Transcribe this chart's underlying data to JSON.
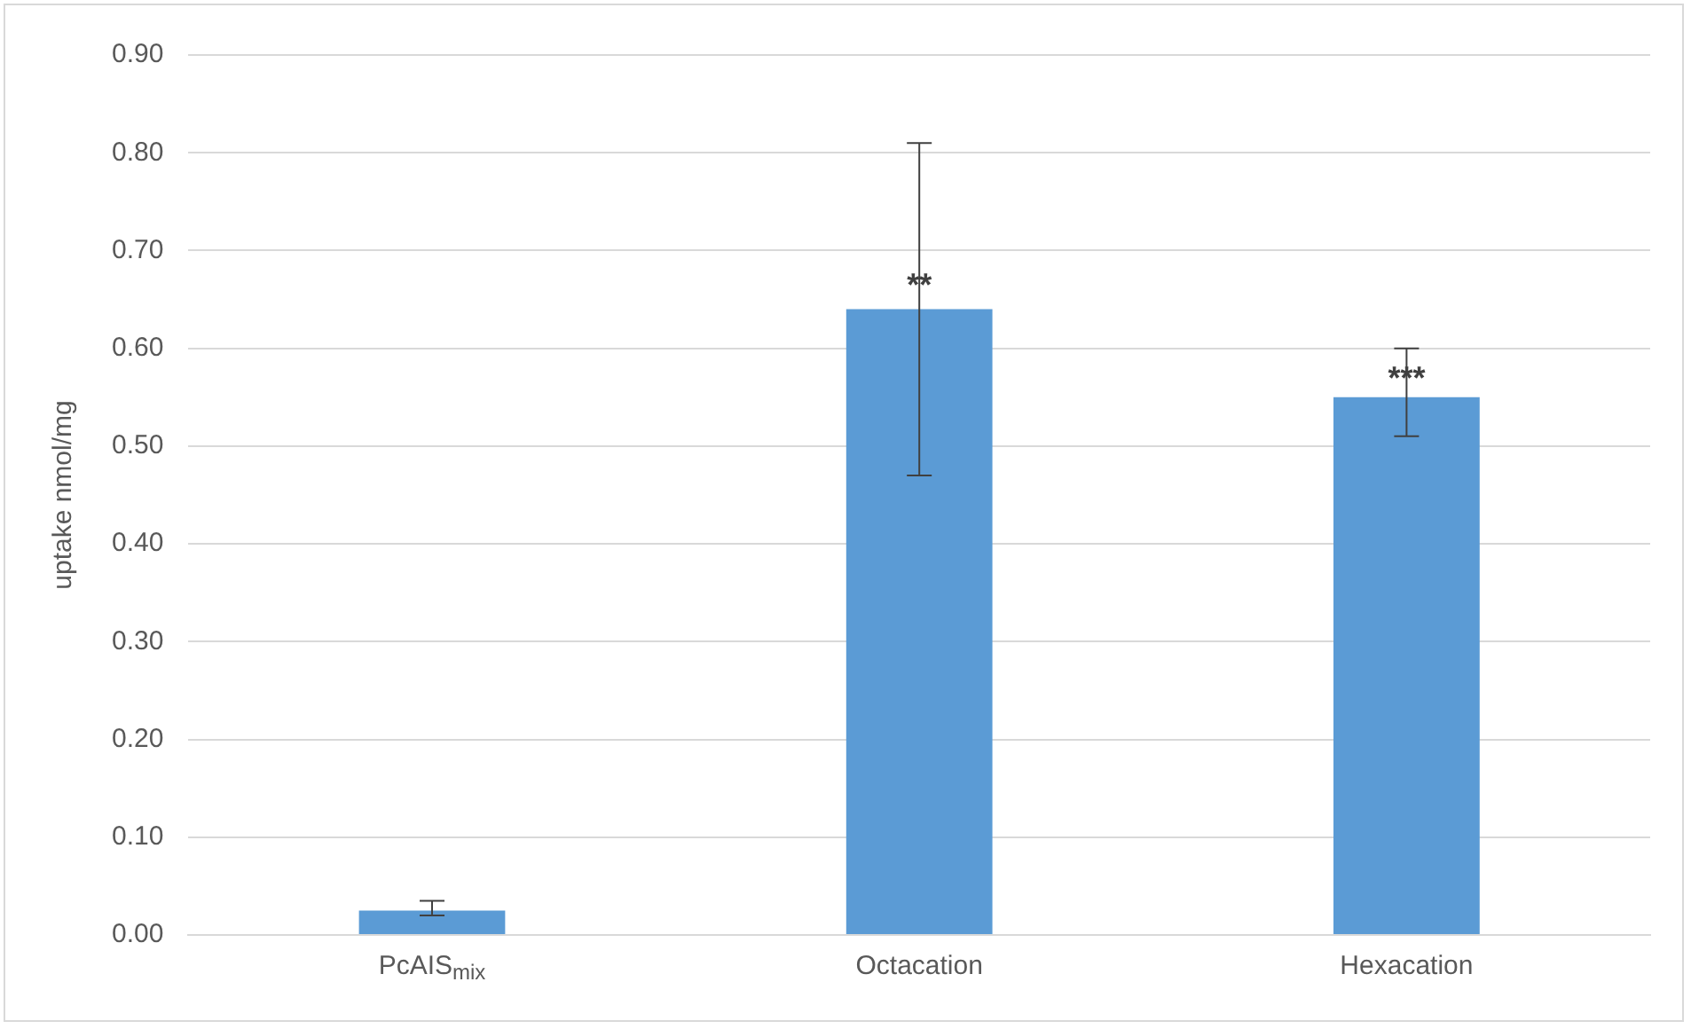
{
  "chart_data": {
    "type": "bar",
    "ylabel": "uptake nmol/mg",
    "categories": [
      "PcAIS$_{mix}$",
      "Octacation",
      "Hexacation"
    ],
    "values": [
      0.025,
      0.64,
      0.55
    ],
    "errors": [
      [
        0.02,
        0.035
      ],
      [
        0.47,
        0.81
      ],
      [
        0.51,
        0.6
      ]
    ],
    "color": "#5b9bd5",
    "ylim": [
      0,
      0.9
    ],
    "yticks": [
      {
        "value": 0,
        "label": "0.00"
      },
      {
        "value": 0.1,
        "label": "0.10"
      },
      {
        "value": 0.2,
        "label": "0.20"
      },
      {
        "value": 0.3,
        "label": "0.30"
      },
      {
        "value": 0.4,
        "label": "0.40"
      },
      {
        "value": 0.5,
        "label": "0.50"
      },
      {
        "value": 0.6,
        "label": "0.60"
      },
      {
        "value": 0.7,
        "label": "0.70"
      },
      {
        "value": 0.8,
        "label": "0.80"
      },
      {
        "value": 0.9,
        "label": "0.90"
      }
    ],
    "grid": "y",
    "annotations": [
      {
        "text": "**",
        "x": "Octacation",
        "y": 0.67
      },
      {
        "text": "***",
        "x": "Hexacation",
        "y": 0.575
      }
    ]
  }
}
